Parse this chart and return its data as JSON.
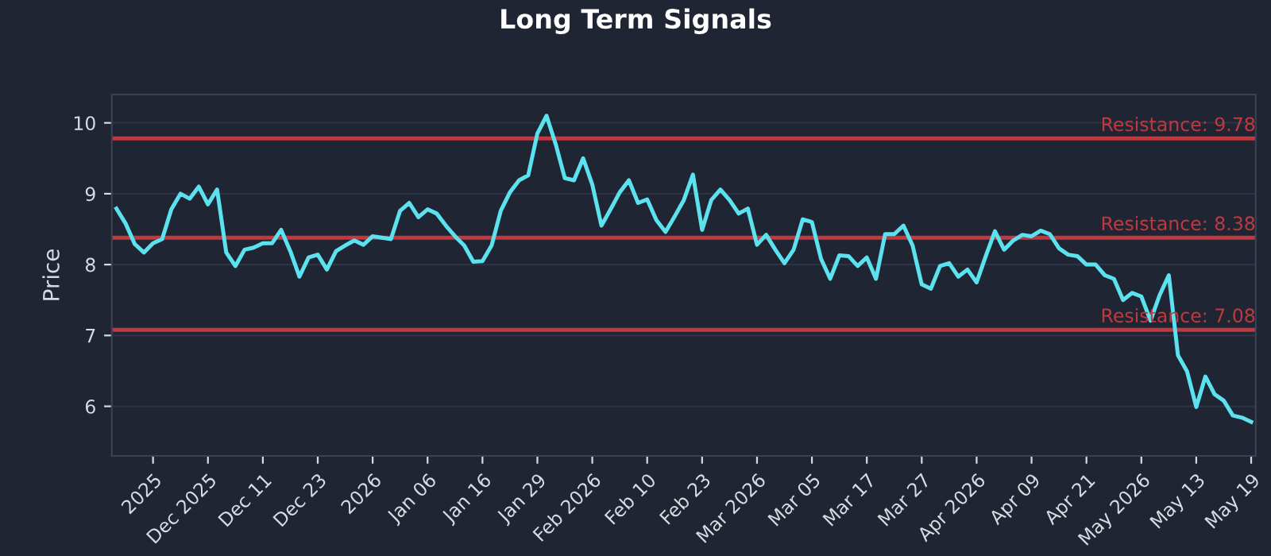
{
  "chart_data": {
    "type": "line",
    "title": "Long Term Signals",
    "ylabel": "Price",
    "categories": [
      null,
      null,
      null,
      null,
      "2025",
      null,
      null,
      null,
      null,
      null,
      "Dec 2025",
      null,
      null,
      null,
      null,
      null,
      "Dec 11",
      null,
      null,
      null,
      null,
      null,
      "Dec 23",
      null,
      null,
      null,
      null,
      null,
      "2026",
      null,
      null,
      null,
      null,
      null,
      "Jan 06",
      null,
      null,
      null,
      null,
      null,
      "Jan 16",
      null,
      null,
      null,
      null,
      null,
      "Jan 29",
      null,
      null,
      null,
      null,
      null,
      "Feb 2026",
      null,
      null,
      null,
      null,
      null,
      "Feb 10",
      null,
      null,
      null,
      null,
      null,
      "Feb 23",
      null,
      null,
      null,
      null,
      null,
      "Mar 2026",
      null,
      null,
      null,
      null,
      null,
      "Mar 05",
      null,
      null,
      null,
      null,
      null,
      "Mar 17",
      null,
      null,
      null,
      null,
      null,
      "Mar 27",
      null,
      null,
      null,
      null,
      null,
      "Apr 2026",
      null,
      null,
      null,
      null,
      null,
      "Apr 09",
      null,
      null,
      null,
      null,
      null,
      "Apr 21",
      null,
      null,
      null,
      null,
      null,
      "May 2026",
      null,
      null,
      null,
      null,
      null,
      "May 13",
      null,
      null,
      null,
      null,
      null,
      "May 19"
    ],
    "series": [
      {
        "color": "#5ce1ee",
        "values": [
          8.79,
          8.58,
          8.29,
          8.17,
          8.3,
          8.36,
          8.78,
          9.0,
          8.93,
          9.1,
          8.85,
          9.06,
          8.17,
          7.98,
          8.21,
          8.24,
          8.3,
          8.3,
          8.49,
          8.19,
          7.83,
          8.1,
          8.14,
          7.93,
          8.19,
          8.27,
          8.34,
          8.28,
          8.4,
          8.38,
          8.36,
          8.76,
          8.87,
          8.67,
          8.78,
          8.72,
          8.55,
          8.4,
          8.27,
          8.04,
          8.05,
          8.27,
          8.76,
          9.02,
          9.19,
          9.26,
          9.85,
          10.1,
          9.7,
          9.22,
          9.19,
          9.5,
          9.13,
          8.55,
          8.78,
          9.02,
          9.19,
          8.87,
          8.92,
          8.63,
          8.46,
          8.68,
          8.91,
          9.27,
          8.49,
          8.91,
          9.06,
          8.91,
          8.72,
          8.79,
          8.28,
          8.42,
          8.21,
          8.02,
          8.21,
          8.64,
          8.6,
          8.08,
          7.8,
          8.13,
          8.12,
          7.98,
          8.1,
          7.8,
          8.43,
          8.43,
          8.55,
          8.27,
          7.72,
          7.66,
          7.98,
          8.02,
          7.83,
          7.93,
          7.75,
          8.12,
          8.47,
          8.21,
          8.34,
          8.42,
          8.4,
          8.48,
          8.43,
          8.23,
          8.14,
          8.12,
          8.0,
          8.0,
          7.85,
          7.8,
          7.5,
          7.6,
          7.55,
          7.21,
          7.57,
          7.85,
          6.72,
          6.49,
          5.99,
          6.42,
          6.17,
          6.08,
          5.87,
          5.84,
          5.78
        ]
      }
    ],
    "ylim": [
      5.3,
      10.4
    ],
    "yticks": [
      6,
      7,
      8,
      9,
      10
    ],
    "grid": "y",
    "line_style": "solid",
    "marker": "none",
    "ref_lines": [
      {
        "axis": "y",
        "value": 9.78,
        "label": "Resistance: 9.78",
        "color": "#c0393f"
      },
      {
        "axis": "y",
        "value": 8.38,
        "label": "Resistance: 8.38",
        "color": "#c0393f"
      },
      {
        "axis": "y",
        "value": 7.08,
        "label": "Resistance: 7.08",
        "color": "#c0393f"
      }
    ]
  }
}
